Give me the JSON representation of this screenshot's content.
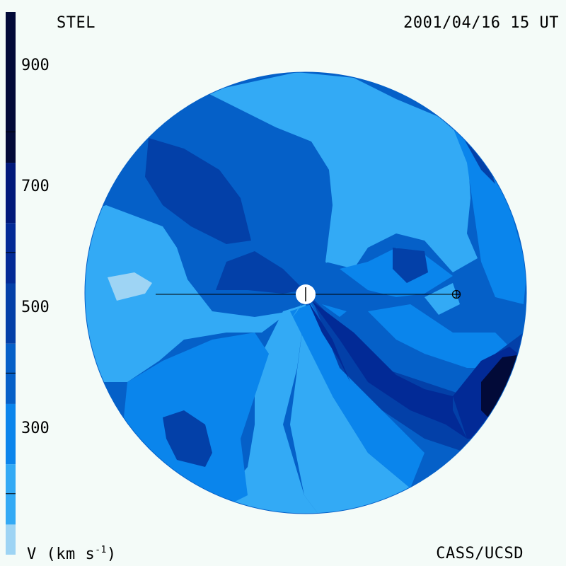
{
  "header": {
    "source": "STEL",
    "datetime": "2001/04/16 15 UT"
  },
  "footer": {
    "units_main": "V (km s",
    "units_sup": "-1",
    "units_close": ")",
    "credit": "CASS/UCSD"
  },
  "colorbar": {
    "tick_labels": [
      "900",
      "700",
      "500",
      "300"
    ],
    "tick_values": [
      900,
      700,
      500,
      300
    ],
    "range": [
      200,
      1100
    ],
    "levels": [
      {
        "min": 200,
        "max": 250,
        "color": "#9ed4f4"
      },
      {
        "min": 250,
        "max": 350,
        "color": "#33aaf5"
      },
      {
        "min": 350,
        "max": 450,
        "color": "#0a85ec"
      },
      {
        "min": 450,
        "max": 550,
        "color": "#0560c8"
      },
      {
        "min": 550,
        "max": 650,
        "color": "#0340a8"
      },
      {
        "min": 650,
        "max": 750,
        "color": "#022a96"
      },
      {
        "min": 750,
        "max": 850,
        "color": "#01197a"
      },
      {
        "min": 850,
        "max": 1100,
        "color": "#020a38"
      }
    ]
  },
  "map": {
    "sun": "sun-icon",
    "earth": "earth-icon",
    "earth_line": "sun-earth-line"
  }
}
